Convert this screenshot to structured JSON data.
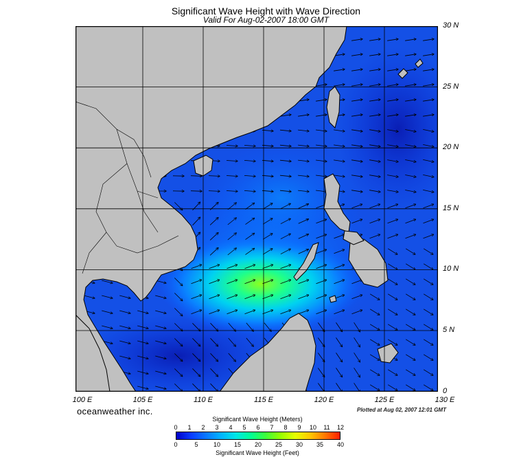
{
  "title": "Significant Wave Height with Wave Direction",
  "subtitle": "Valid For Aug-02-2007 18:00 GMT",
  "brand": "oceanweather inc.",
  "plotted": "Plotted at Aug 02, 2007 12:01 GMT",
  "lat_labels": [
    "30 N",
    "25 N",
    "20 N",
    "15 N",
    "10 N",
    "5 N",
    "0"
  ],
  "lon_labels": [
    "100 E",
    "105 E",
    "110 E",
    "115 E",
    "120 E",
    "125 E",
    "130 E"
  ],
  "colorbar": {
    "meters_title": "Significant Wave Height (Meters)",
    "feet_title": "Significant Wave Height (Feet)",
    "meters_ticks": [
      "0",
      "1",
      "2",
      "3",
      "4",
      "5",
      "6",
      "7",
      "8",
      "9",
      "10",
      "11",
      "12"
    ],
    "feet_ticks": [
      "0",
      "5",
      "10",
      "15",
      "20",
      "25",
      "30",
      "35",
      "40"
    ],
    "colors": [
      "#0000c8",
      "#0a3cff",
      "#0a78ff",
      "#00b4ff",
      "#00e6e6",
      "#00ff96",
      "#3cff3c",
      "#96ff00",
      "#e6ff00",
      "#ffc800",
      "#ff7800",
      "#ff1e00"
    ]
  },
  "colors": {
    "land": "#c0c0c0",
    "sea_background": "#1450e6",
    "grid": "#000000",
    "coast": "#000000"
  }
}
